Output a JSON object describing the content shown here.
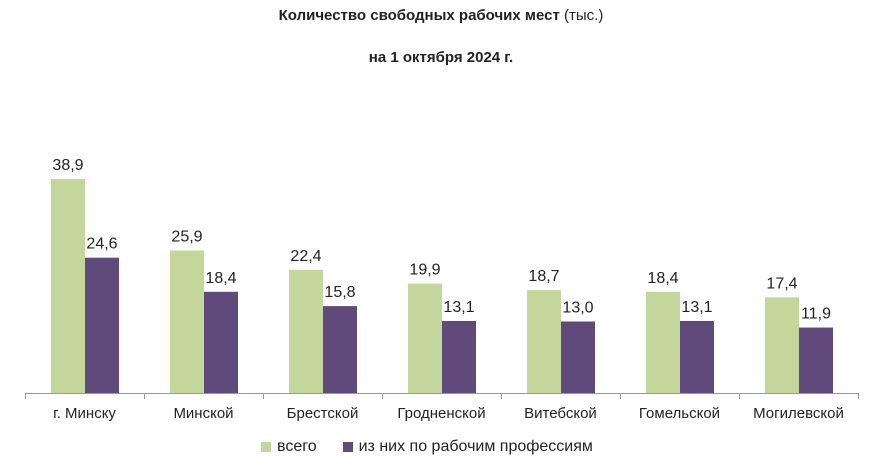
{
  "title": {
    "bold": "Количество свободных рабочих мест",
    "normal": "(тыс.)",
    "subtitle": "на 1 октября 2024 г."
  },
  "chart_data": {
    "type": "bar",
    "title": "Количество свободных рабочих мест (тыс.) на 1 октября 2024 г.",
    "categories": [
      "г. Минску",
      "Минской",
      "Брестской",
      "Гродненской",
      "Витебской",
      "Гомельской",
      "Могилевской"
    ],
    "series": [
      {
        "name": "всего",
        "color": "#c3d69b",
        "values": [
          38.9,
          25.9,
          22.4,
          19.9,
          18.7,
          18.4,
          17.4
        ],
        "labels": [
          "38,9",
          "25,9",
          "22,4",
          "19,9",
          "18,7",
          "18,4",
          "17,4"
        ]
      },
      {
        "name": "из них по рабочим профессиям",
        "color": "#604a7b",
        "values": [
          24.6,
          18.4,
          15.8,
          13.1,
          13.0,
          13.1,
          11.9
        ],
        "labels": [
          "24,6",
          "18,4",
          "15,8",
          "13,1",
          "13,0",
          "13,1",
          "11,9"
        ]
      }
    ],
    "ylim": [
      0,
      40
    ],
    "grid": false,
    "legend": "bottom"
  }
}
